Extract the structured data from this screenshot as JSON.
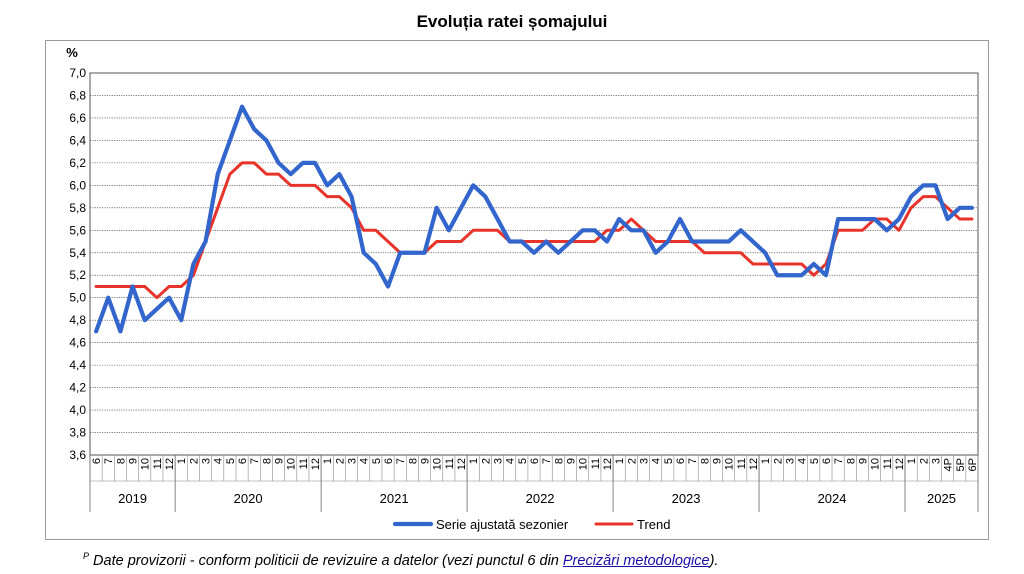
{
  "chart_data": {
    "type": "line",
    "title": "Evoluția ratei șomajului",
    "ylabel": "%",
    "ylim": [
      3.6,
      7.0
    ],
    "yticks": [
      "3,6",
      "3,8",
      "4,0",
      "4,2",
      "4,4",
      "4,6",
      "4,8",
      "5,0",
      "5,2",
      "5,4",
      "5,6",
      "5,8",
      "6,0",
      "6,2",
      "6,4",
      "6,6",
      "6,8",
      "7,0"
    ],
    "grid": true,
    "legend_position": "bottom",
    "x_months": [
      "6",
      "7",
      "8",
      "9",
      "10",
      "11",
      "12",
      "1",
      "2",
      "3",
      "4",
      "5",
      "6",
      "7",
      "8",
      "9",
      "10",
      "11",
      "12",
      "1",
      "2",
      "3",
      "4",
      "5",
      "6",
      "7",
      "8",
      "9",
      "10",
      "11",
      "12",
      "1",
      "2",
      "3",
      "4",
      "5",
      "6",
      "7",
      "8",
      "9",
      "10",
      "11",
      "12",
      "1",
      "2",
      "3",
      "4",
      "5",
      "6",
      "7",
      "8",
      "9",
      "10",
      "11",
      "12",
      "1",
      "2",
      "3",
      "4",
      "5",
      "6",
      "7",
      "8",
      "9",
      "10",
      "11",
      "12",
      "1",
      "2",
      "3",
      "4P",
      "5P",
      "6P"
    ],
    "x_years": [
      {
        "label": "2019",
        "count": 7
      },
      {
        "label": "2020",
        "count": 12
      },
      {
        "label": "2021",
        "count": 12
      },
      {
        "label": "2022",
        "count": 12
      },
      {
        "label": "2023",
        "count": 12
      },
      {
        "label": "2024",
        "count": 12
      },
      {
        "label": "2025",
        "count": 6
      }
    ],
    "series": [
      {
        "name": "Serie ajustată sezonier",
        "color": "#3366cc",
        "values": [
          4.7,
          5.0,
          4.7,
          5.1,
          4.8,
          4.9,
          5.0,
          4.8,
          5.3,
          5.5,
          6.1,
          6.4,
          6.7,
          6.5,
          6.4,
          6.2,
          6.1,
          6.2,
          6.2,
          6.0,
          6.1,
          5.9,
          5.4,
          5.3,
          5.1,
          5.4,
          5.4,
          5.4,
          5.8,
          5.6,
          5.8,
          6.0,
          5.9,
          5.7,
          5.5,
          5.5,
          5.4,
          5.5,
          5.4,
          5.5,
          5.6,
          5.6,
          5.5,
          5.7,
          5.6,
          5.6,
          5.4,
          5.5,
          5.7,
          5.5,
          5.5,
          5.5,
          5.5,
          5.6,
          5.5,
          5.4,
          5.2,
          5.2,
          5.2,
          5.3,
          5.2,
          5.7,
          5.7,
          5.7,
          5.7,
          5.6,
          5.7,
          5.9,
          6.0,
          6.0,
          5.7,
          5.8,
          5.8
        ]
      },
      {
        "name": "Trend",
        "color": "#e8332a",
        "values": [
          5.1,
          5.1,
          5.1,
          5.1,
          5.1,
          5.0,
          5.1,
          5.1,
          5.2,
          5.5,
          5.8,
          6.1,
          6.2,
          6.2,
          6.1,
          6.1,
          6.0,
          6.0,
          6.0,
          5.9,
          5.9,
          5.8,
          5.6,
          5.6,
          5.5,
          5.4,
          5.4,
          5.4,
          5.5,
          5.5,
          5.5,
          5.6,
          5.6,
          5.6,
          5.5,
          5.5,
          5.5,
          5.5,
          5.5,
          5.5,
          5.5,
          5.5,
          5.6,
          5.6,
          5.7,
          5.6,
          5.5,
          5.5,
          5.5,
          5.5,
          5.4,
          5.4,
          5.4,
          5.4,
          5.3,
          5.3,
          5.3,
          5.3,
          5.3,
          5.2,
          5.3,
          5.6,
          5.6,
          5.6,
          5.7,
          5.7,
          5.6,
          5.8,
          5.9,
          5.9,
          5.8,
          5.7,
          5.7
        ]
      }
    ]
  },
  "footnote": {
    "superscript": "P",
    "text": "Date provizorii - conform politicii de revizuire a datelor (vezi punctul 6 din ",
    "link": "Precizări metodologice",
    "suffix": ")."
  }
}
